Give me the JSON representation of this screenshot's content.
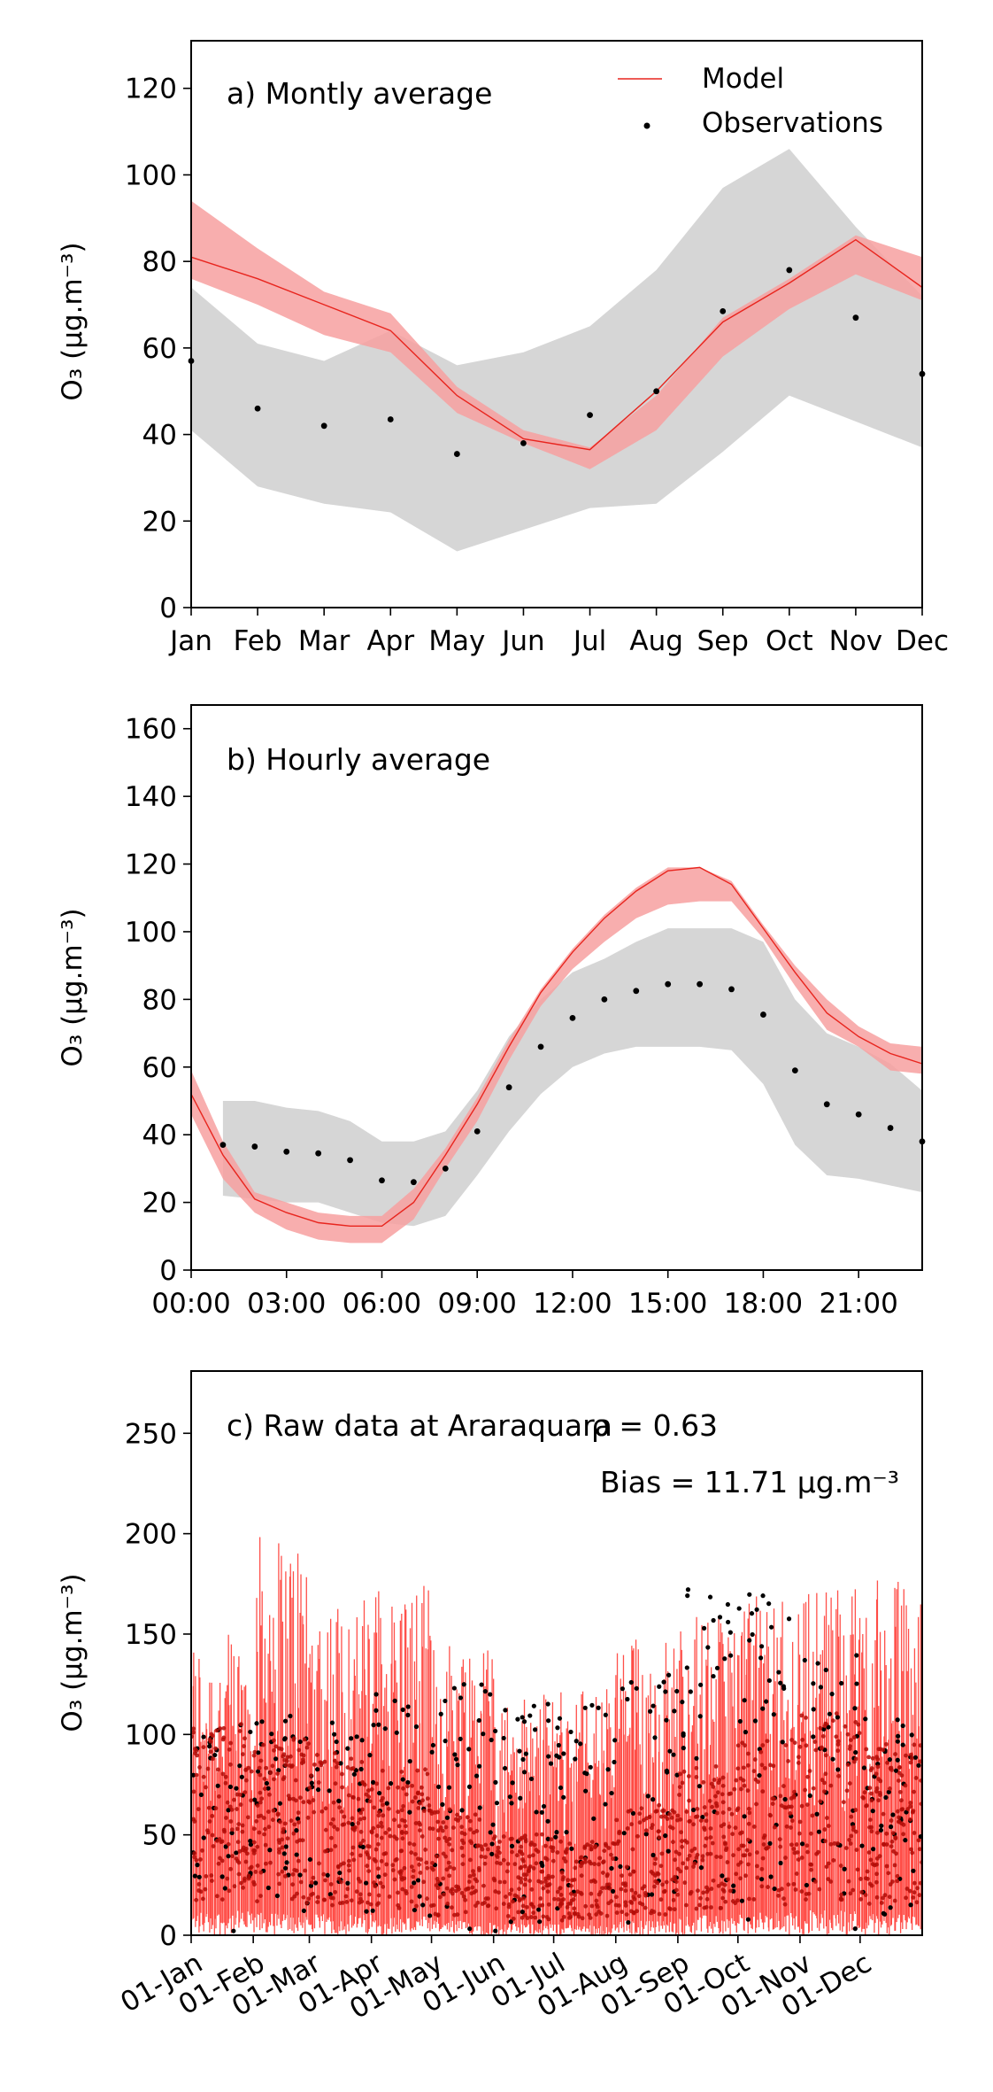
{
  "chart_data": [
    {
      "type": "line",
      "label": "a) Montly average",
      "ylabel": "O₃ (μg.m⁻³)",
      "ylim": [
        0,
        131
      ],
      "yticks": [
        0,
        20,
        40,
        60,
        80,
        100,
        120
      ],
      "xticks": [
        "Jan",
        "Feb",
        "Mar",
        "Apr",
        "May",
        "Jun",
        "Jul",
        "Aug",
        "Sep",
        "Oct",
        "Nov",
        "Dec"
      ],
      "xtick_positions": [
        1,
        2,
        3,
        4,
        5,
        6,
        7,
        8,
        9,
        10,
        11,
        12
      ],
      "xlim": [
        1,
        12
      ],
      "legend": {
        "position": "top-right",
        "entries": [
          "Model",
          "Observations"
        ]
      },
      "series": [
        {
          "name": "Model",
          "kind": "line",
          "color": "#e8251e",
          "x": [
            1,
            2,
            3,
            4,
            5,
            6,
            7,
            8,
            9,
            10,
            11,
            12
          ],
          "values": [
            81,
            76,
            70,
            64,
            49,
            39,
            36.5,
            50,
            66,
            75,
            85,
            74
          ],
          "band_low": [
            76,
            70,
            63,
            59,
            45,
            38,
            32,
            41,
            58,
            69,
            77,
            71
          ],
          "band_high": [
            94,
            83,
            73,
            68,
            51,
            41,
            37,
            49,
            67,
            76,
            86,
            81
          ]
        },
        {
          "name": "Observations",
          "kind": "scatter",
          "color": "#000000",
          "x": [
            1,
            2,
            3,
            4,
            5,
            6,
            7,
            8,
            9,
            10,
            11,
            12
          ],
          "values": [
            57,
            46,
            42,
            43.5,
            35.5,
            38,
            44.5,
            50,
            68.5,
            78,
            67,
            54
          ],
          "band_low": [
            41,
            28,
            24,
            22,
            13,
            18,
            23,
            24,
            36,
            49,
            43,
            37
          ],
          "band_high": [
            74,
            61,
            57,
            64,
            56,
            59,
            65,
            78,
            97,
            106,
            88,
            72
          ]
        }
      ]
    },
    {
      "type": "line",
      "label": "b) Hourly average",
      "ylabel": "O₃ (μg.m⁻³)",
      "ylim": [
        0,
        167
      ],
      "yticks": [
        0,
        20,
        40,
        60,
        80,
        100,
        120,
        140,
        160
      ],
      "xlim": [
        0,
        23
      ],
      "xticks": [
        "00:00",
        "03:00",
        "06:00",
        "09:00",
        "12:00",
        "15:00",
        "18:00",
        "21:00"
      ],
      "xtick_positions": [
        0,
        3,
        6,
        9,
        12,
        15,
        18,
        21
      ],
      "series": [
        {
          "name": "Model",
          "kind": "line",
          "color": "#e8251e",
          "x": [
            0,
            1,
            2,
            3,
            4,
            5,
            6,
            7,
            8,
            9,
            10,
            11,
            12,
            13,
            14,
            15,
            16,
            17,
            18,
            19,
            20,
            21,
            22,
            23
          ],
          "values": [
            52,
            34,
            21,
            17,
            14,
            13,
            13,
            20,
            34,
            49,
            66,
            82,
            94,
            104,
            112,
            118,
            119,
            114,
            101,
            88,
            76,
            69,
            64,
            61
          ],
          "band_low": [
            46,
            27,
            17,
            12,
            9,
            8,
            8,
            15,
            30,
            44,
            62,
            78,
            89,
            97,
            104,
            108,
            109,
            109,
            98,
            84,
            71,
            66,
            59,
            58
          ],
          "band_high": [
            59,
            38,
            23,
            20,
            17,
            16,
            16,
            24,
            36,
            51,
            68,
            83,
            95,
            105,
            113,
            119,
            119,
            115,
            102,
            90,
            80,
            72,
            67,
            66
          ]
        },
        {
          "name": "Observations",
          "kind": "scatter",
          "color": "#000000",
          "x": [
            1,
            2,
            3,
            4,
            5,
            6,
            7,
            8,
            9,
            10,
            11,
            12,
            13,
            14,
            15,
            16,
            17,
            18,
            19,
            20,
            21,
            22,
            23
          ],
          "values": [
            37,
            36.5,
            35,
            34.5,
            32.5,
            26.5,
            26,
            30,
            41,
            54,
            66,
            74.5,
            80,
            82.5,
            84.5,
            84.5,
            83,
            75.5,
            59,
            49,
            46,
            42,
            38
          ],
          "band_low": [
            22,
            21,
            20,
            20,
            17,
            14,
            13,
            16,
            28,
            41,
            52,
            60,
            64,
            66,
            66,
            66,
            65,
            55,
            37,
            28,
            27,
            25,
            23
          ],
          "band_high": [
            50,
            50,
            48,
            47,
            44,
            38,
            38,
            41,
            53,
            69,
            80,
            88,
            92,
            97,
            101,
            101,
            101,
            97,
            80,
            70,
            66,
            61,
            53
          ]
        }
      ]
    },
    {
      "type": "line",
      "label": "c) Raw data at Araraquara",
      "annotations": [
        "ρ = 0.63",
        "Bias = 11.71 μg.m⁻³"
      ],
      "ylabel": "O₃ (μg.m⁻³)",
      "ylim": [
        0,
        281
      ],
      "yticks": [
        0,
        50,
        100,
        150,
        200,
        250
      ],
      "xticks": [
        "01-Jan",
        "01-Feb",
        "01-Mar",
        "01-Apr",
        "01-May",
        "01-Jun",
        "01-Jul",
        "01-Aug",
        "01-Sep",
        "01-Oct",
        "01-Nov",
        "01-Dec"
      ],
      "xtick_positions": [
        "2019-01-01",
        "2019-02-01",
        "2019-03-01",
        "2019-04-01",
        "2019-05-01",
        "2019-06-01",
        "2019-07-01",
        "2019-08-01",
        "2019-09-01",
        "2019-10-01",
        "2019-11-01",
        "2019-12-01"
      ],
      "xlim": [
        "2019-01-01",
        "2019-12-31"
      ],
      "series": [
        {
          "name": "Model",
          "kind": "line",
          "color": "#f21c14",
          "x_monthly": [
            "Jan",
            "Feb",
            "Mar",
            "Apr",
            "May",
            "Jun",
            "Jul",
            "Aug",
            "Sep",
            "Oct",
            "Nov",
            "Dec"
          ],
          "monthly_max": [
            150,
            200,
            170,
            175,
            150,
            120,
            125,
            150,
            160,
            170,
            175,
            178
          ],
          "monthly_mean": [
            81,
            76,
            70,
            64,
            49,
            39,
            36.5,
            50,
            66,
            75,
            85,
            74
          ]
        },
        {
          "name": "Observations",
          "kind": "scatter",
          "color": "#000000",
          "x_monthly": [
            "Jan",
            "Feb",
            "Mar",
            "Apr",
            "May",
            "Jun",
            "Jul",
            "Aug",
            "Sep",
            "Oct",
            "Nov",
            "Dec"
          ],
          "monthly_max": [
            105,
            110,
            108,
            120,
            125,
            117,
            115,
            130,
            175,
            170,
            145,
            110
          ],
          "monthly_mean": [
            57,
            46,
            42,
            43.5,
            35.5,
            38,
            44.5,
            50,
            68.5,
            78,
            67,
            54
          ]
        }
      ]
    }
  ]
}
